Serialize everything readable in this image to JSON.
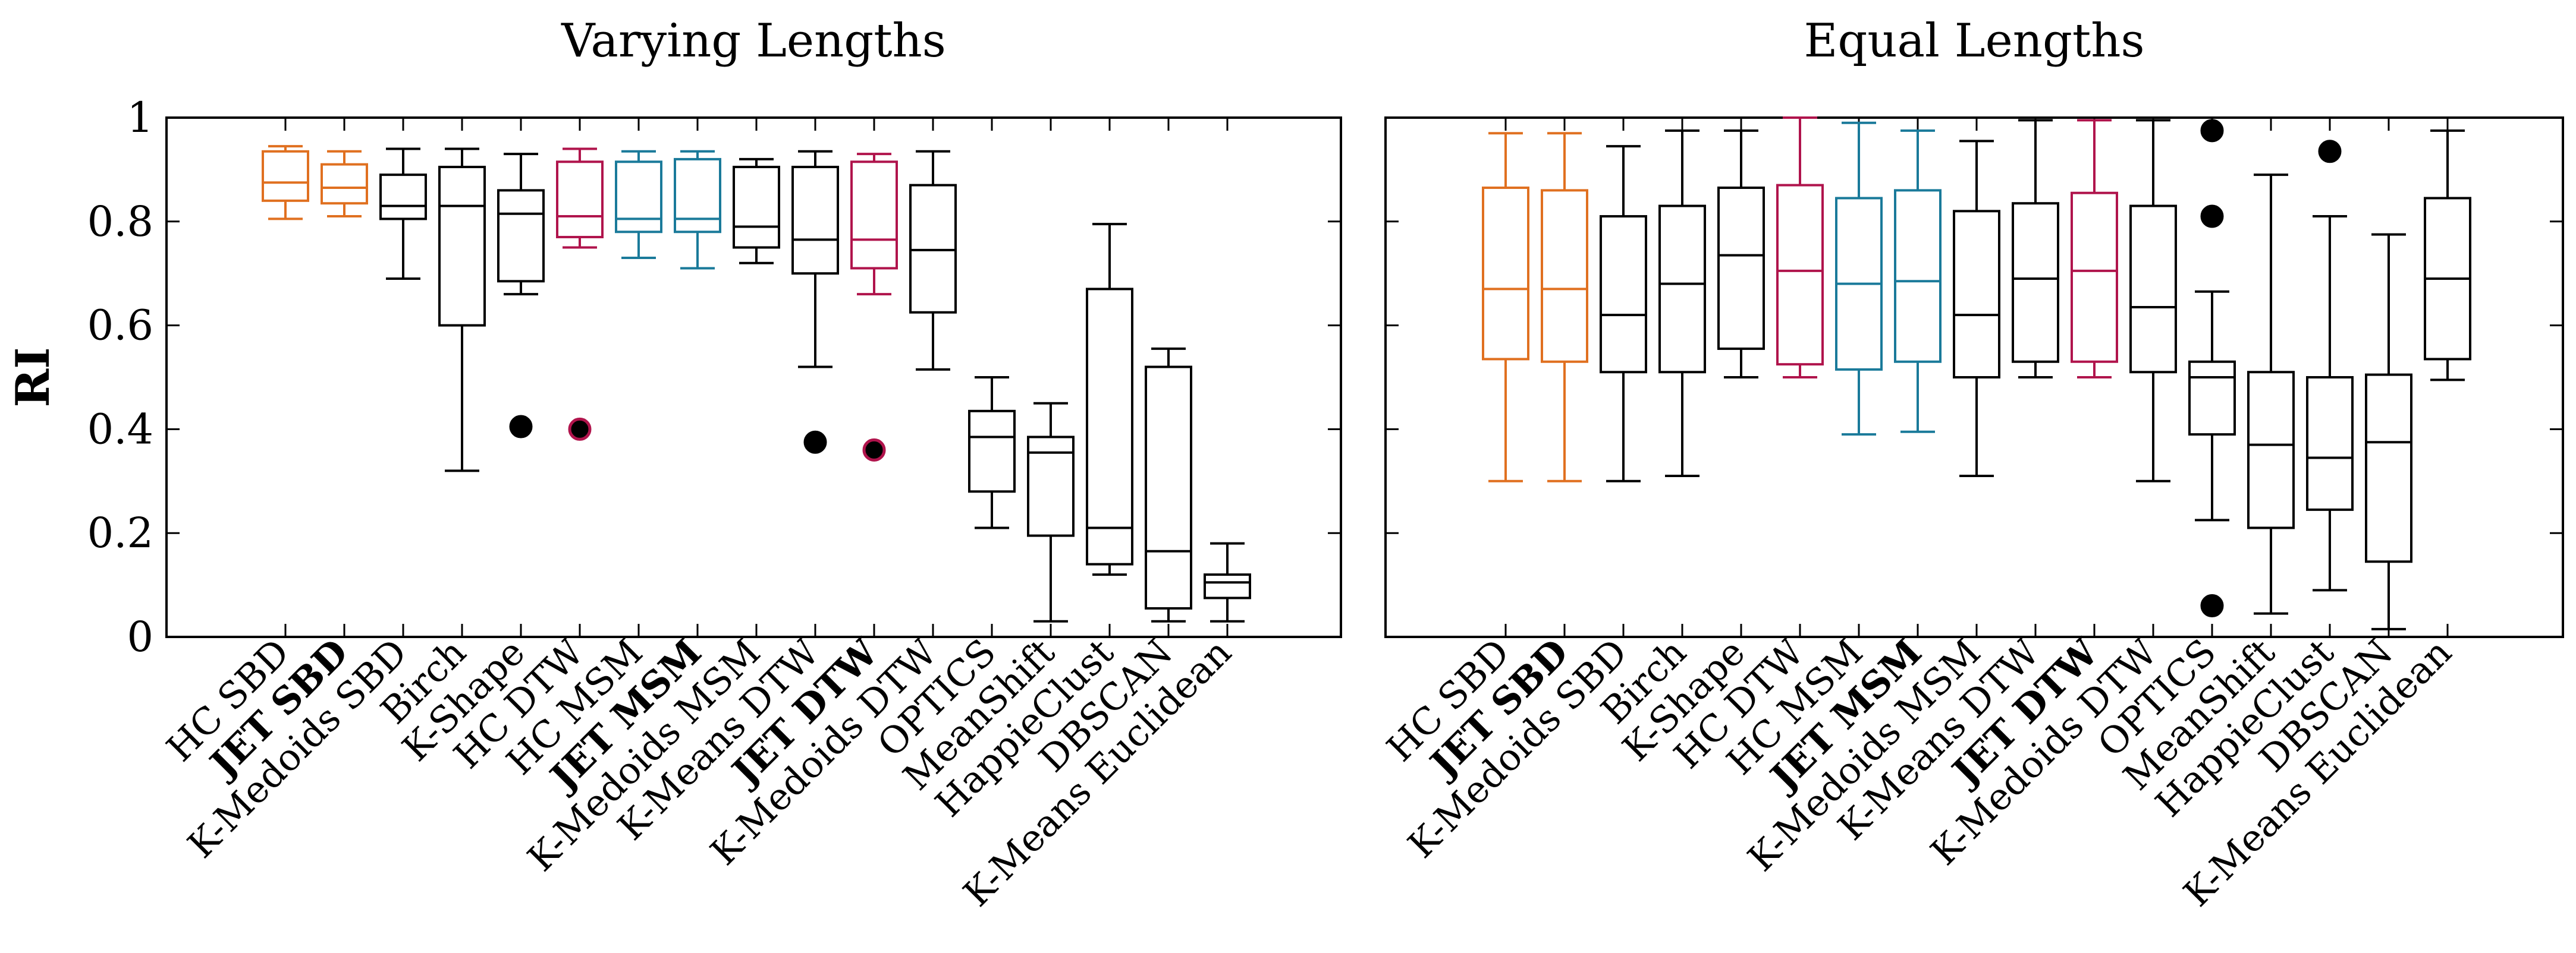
{
  "chart_data": [
    {
      "type": "box",
      "title": "Varying Lengths",
      "ylabel": "RI",
      "ylim": [
        0,
        1
      ],
      "yticks": [
        0,
        0.2,
        0.4,
        0.6,
        0.8,
        1
      ],
      "ytick_labels": [
        "0",
        "0.2",
        "0.4",
        "0.6",
        "0.8",
        "1"
      ],
      "categories": [
        {
          "prefix": "HC",
          "bold": false,
          "method": "SBD"
        },
        {
          "prefix": "JET",
          "bold": true,
          "method": "SBD"
        },
        {
          "prefix": "K-Medoids",
          "bold": false,
          "method": "SBD"
        },
        {
          "prefix": "",
          "bold": false,
          "method": "Birch"
        },
        {
          "prefix": "",
          "bold": false,
          "method": "K-Shape"
        },
        {
          "prefix": "HC",
          "bold": false,
          "method": "DTW"
        },
        {
          "prefix": "HC",
          "bold": false,
          "method": "MSM"
        },
        {
          "prefix": "JET",
          "bold": true,
          "method": "MSM"
        },
        {
          "prefix": "K-Medoids",
          "bold": false,
          "method": "MSM"
        },
        {
          "prefix": "K-Means",
          "bold": false,
          "method": "DTW"
        },
        {
          "prefix": "JET",
          "bold": true,
          "method": "DTW"
        },
        {
          "prefix": "K-Medoids",
          "bold": false,
          "method": "DTW"
        },
        {
          "prefix": "",
          "bold": false,
          "method": "OPTICS"
        },
        {
          "prefix": "",
          "bold": false,
          "method": "MeanShift"
        },
        {
          "prefix": "",
          "bold": false,
          "method": "HappieClust"
        },
        {
          "prefix": "",
          "bold": false,
          "method": "DBSCAN"
        },
        {
          "prefix": "K-Means",
          "bold": false,
          "method": "Euclidean"
        }
      ],
      "series": [
        {
          "name": "HC SBD",
          "color": "#e07020",
          "min": 0.805,
          "q1": 0.84,
          "median": 0.875,
          "q3": 0.935,
          "max": 0.945,
          "outliers": []
        },
        {
          "name": "JET SBD",
          "color": "#e07020",
          "min": 0.81,
          "q1": 0.835,
          "median": 0.865,
          "q3": 0.91,
          "max": 0.935,
          "outliers": []
        },
        {
          "name": "K-Medoids SBD",
          "color": "#000000",
          "min": 0.69,
          "q1": 0.805,
          "median": 0.83,
          "q3": 0.89,
          "max": 0.94,
          "outliers": []
        },
        {
          "name": "Birch",
          "color": "#000000",
          "min": 0.32,
          "q1": 0.6,
          "median": 0.83,
          "q3": 0.905,
          "max": 0.94,
          "outliers": []
        },
        {
          "name": "K-Shape",
          "color": "#000000",
          "min": 0.66,
          "q1": 0.685,
          "median": 0.815,
          "q3": 0.86,
          "max": 0.93,
          "outliers": [
            0.405
          ]
        },
        {
          "name": "HC DTW",
          "color": "#b0144c",
          "min": 0.75,
          "q1": 0.77,
          "median": 0.81,
          "q3": 0.915,
          "max": 0.94,
          "outliers": [
            0.4
          ]
        },
        {
          "name": "HC MSM",
          "color": "#1a7a9a",
          "min": 0.73,
          "q1": 0.78,
          "median": 0.805,
          "q3": 0.915,
          "max": 0.935,
          "outliers": []
        },
        {
          "name": "JET MSM",
          "color": "#1a7a9a",
          "min": 0.71,
          "q1": 0.78,
          "median": 0.805,
          "q3": 0.92,
          "max": 0.935,
          "outliers": []
        },
        {
          "name": "K-Medoids MSM",
          "color": "#000000",
          "min": 0.72,
          "q1": 0.75,
          "median": 0.79,
          "q3": 0.905,
          "max": 0.92,
          "outliers": []
        },
        {
          "name": "K-Means DTW",
          "color": "#000000",
          "min": 0.52,
          "q1": 0.7,
          "median": 0.765,
          "q3": 0.905,
          "max": 0.935,
          "outliers": [
            0.375
          ]
        },
        {
          "name": "JET DTW",
          "color": "#b0144c",
          "min": 0.66,
          "q1": 0.71,
          "median": 0.765,
          "q3": 0.915,
          "max": 0.93,
          "outliers": [
            0.36
          ]
        },
        {
          "name": "K-Medoids DTW",
          "color": "#000000",
          "min": 0.515,
          "q1": 0.625,
          "median": 0.745,
          "q3": 0.87,
          "max": 0.935,
          "outliers": []
        },
        {
          "name": "OPTICS",
          "color": "#000000",
          "min": 0.21,
          "q1": 0.28,
          "median": 0.385,
          "q3": 0.435,
          "max": 0.5,
          "outliers": []
        },
        {
          "name": "MeanShift",
          "color": "#000000",
          "min": 0.03,
          "q1": 0.195,
          "median": 0.355,
          "q3": 0.385,
          "max": 0.45,
          "outliers": []
        },
        {
          "name": "HappieClust",
          "color": "#000000",
          "min": 0.12,
          "q1": 0.14,
          "median": 0.21,
          "q3": 0.67,
          "max": 0.795,
          "outliers": []
        },
        {
          "name": "DBSCAN",
          "color": "#000000",
          "min": 0.03,
          "q1": 0.055,
          "median": 0.165,
          "q3": 0.52,
          "max": 0.555,
          "outliers": []
        },
        {
          "name": "K-Means Euclidean",
          "color": "#000000",
          "min": 0.03,
          "q1": 0.075,
          "median": 0.105,
          "q3": 0.12,
          "max": 0.18,
          "outliers": []
        }
      ]
    },
    {
      "type": "box",
      "title": "Equal Lengths",
      "ylabel": "",
      "ylim": [
        0,
        1
      ],
      "categories": [
        {
          "prefix": "HC",
          "bold": false,
          "method": "SBD"
        },
        {
          "prefix": "JET",
          "bold": true,
          "method": "SBD"
        },
        {
          "prefix": "K-Medoids",
          "bold": false,
          "method": "SBD"
        },
        {
          "prefix": "",
          "bold": false,
          "method": "Birch"
        },
        {
          "prefix": "",
          "bold": false,
          "method": "K-Shape"
        },
        {
          "prefix": "HC",
          "bold": false,
          "method": "DTW"
        },
        {
          "prefix": "HC",
          "bold": false,
          "method": "MSM"
        },
        {
          "prefix": "JET",
          "bold": true,
          "method": "MSM"
        },
        {
          "prefix": "K-Medoids",
          "bold": false,
          "method": "MSM"
        },
        {
          "prefix": "K-Means",
          "bold": false,
          "method": "DTW"
        },
        {
          "prefix": "JET",
          "bold": true,
          "method": "DTW"
        },
        {
          "prefix": "K-Medoids",
          "bold": false,
          "method": "DTW"
        },
        {
          "prefix": "",
          "bold": false,
          "method": "OPTICS"
        },
        {
          "prefix": "",
          "bold": false,
          "method": "MeanShift"
        },
        {
          "prefix": "",
          "bold": false,
          "method": "HappieClust"
        },
        {
          "prefix": "",
          "bold": false,
          "method": "DBSCAN"
        },
        {
          "prefix": "K-Means",
          "bold": false,
          "method": "Euclidean"
        }
      ],
      "series": [
        {
          "name": "HC SBD",
          "color": "#e07020",
          "min": 0.3,
          "q1": 0.535,
          "median": 0.67,
          "q3": 0.865,
          "max": 0.97,
          "outliers": []
        },
        {
          "name": "JET SBD",
          "color": "#e07020",
          "min": 0.3,
          "q1": 0.53,
          "median": 0.67,
          "q3": 0.86,
          "max": 0.97,
          "outliers": []
        },
        {
          "name": "K-Medoids SBD",
          "color": "#000000",
          "min": 0.3,
          "q1": 0.51,
          "median": 0.62,
          "q3": 0.81,
          "max": 0.945,
          "outliers": []
        },
        {
          "name": "Birch",
          "color": "#000000",
          "min": 0.31,
          "q1": 0.51,
          "median": 0.68,
          "q3": 0.83,
          "max": 0.975,
          "outliers": []
        },
        {
          "name": "K-Shape",
          "color": "#000000",
          "min": 0.5,
          "q1": 0.555,
          "median": 0.735,
          "q3": 0.865,
          "max": 0.975,
          "outliers": []
        },
        {
          "name": "HC DTW",
          "color": "#b0144c",
          "min": 0.5,
          "q1": 0.525,
          "median": 0.705,
          "q3": 0.87,
          "max": 1.0,
          "outliers": []
        },
        {
          "name": "HC MSM",
          "color": "#1a7a9a",
          "min": 0.39,
          "q1": 0.515,
          "median": 0.68,
          "q3": 0.845,
          "max": 0.99,
          "outliers": []
        },
        {
          "name": "JET MSM",
          "color": "#1a7a9a",
          "min": 0.395,
          "q1": 0.53,
          "median": 0.685,
          "q3": 0.86,
          "max": 0.975,
          "outliers": []
        },
        {
          "name": "K-Medoids MSM",
          "color": "#000000",
          "min": 0.31,
          "q1": 0.5,
          "median": 0.62,
          "q3": 0.82,
          "max": 0.955,
          "outliers": []
        },
        {
          "name": "K-Means DTW",
          "color": "#000000",
          "min": 0.5,
          "q1": 0.53,
          "median": 0.69,
          "q3": 0.835,
          "max": 0.995,
          "outliers": []
        },
        {
          "name": "JET DTW",
          "color": "#b0144c",
          "min": 0.5,
          "q1": 0.53,
          "median": 0.705,
          "q3": 0.855,
          "max": 0.995,
          "outliers": []
        },
        {
          "name": "K-Medoids DTW",
          "color": "#000000",
          "min": 0.3,
          "q1": 0.51,
          "median": 0.635,
          "q3": 0.83,
          "max": 0.995,
          "outliers": []
        },
        {
          "name": "OPTICS",
          "color": "#000000",
          "min": 0.225,
          "q1": 0.39,
          "median": 0.5,
          "q3": 0.53,
          "max": 0.665,
          "outliers": [
            0.975,
            0.81,
            0.06
          ]
        },
        {
          "name": "MeanShift",
          "color": "#000000",
          "min": 0.045,
          "q1": 0.21,
          "median": 0.37,
          "q3": 0.51,
          "max": 0.89,
          "outliers": []
        },
        {
          "name": "HappieClust",
          "color": "#000000",
          "min": 0.09,
          "q1": 0.245,
          "median": 0.345,
          "q3": 0.5,
          "max": 0.81,
          "outliers": [
            0.935
          ]
        },
        {
          "name": "DBSCAN",
          "color": "#000000",
          "min": 0.015,
          "q1": 0.145,
          "median": 0.375,
          "q3": 0.505,
          "max": 0.775,
          "outliers": []
        },
        {
          "name": "K-Means Euclidean",
          "color": "#000000",
          "min": 0.495,
          "q1": 0.535,
          "median": 0.69,
          "q3": 0.845,
          "max": 0.975,
          "outliers": []
        }
      ]
    }
  ]
}
